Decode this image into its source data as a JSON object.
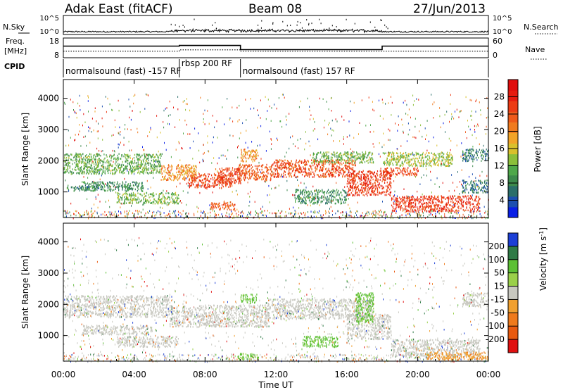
{
  "header": {
    "title": "Adak East (fitACF)",
    "beam": "Beam 08",
    "date": "27/Jun/2013"
  },
  "labels": {
    "nsky": "N.Sky",
    "nsearch": "N.Search",
    "freq_line1": "Freq.",
    "freq_line2": "[MHz]",
    "nave": "Nave",
    "cpid": "CPID",
    "noise_tick_hi": "10^5",
    "noise_tick_lo": "10^0",
    "freq_tick_hi": "18",
    "freq_tick_lo": "8",
    "nave_tick_hi": "60",
    "nave_tick_lo": "0",
    "xlabel": "Time UT",
    "power_ylabel": "Slant Range [km]",
    "velocity_ylabel": "Slant Range [km]",
    "power_unit": "Power [dB]",
    "velocity_unit_main": "Velocity [m s",
    "velocity_unit_sup": "-1",
    "velocity_unit_end": "]"
  },
  "cpid_segments": [
    {
      "text": "normalsound (fast) -157 RF",
      "start_h": 0,
      "end_h": 6.55
    },
    {
      "text": "rbsp 200 RF",
      "start_h": 6.55,
      "end_h": 10.0
    },
    {
      "text": "normalsound (fast) 157 RF",
      "start_h": 10.0,
      "end_h": 24.0
    }
  ],
  "chart_data": [
    {
      "type": "line",
      "name": "Noise / Frequency / Nave summary",
      "x_range_h": [
        0,
        24
      ],
      "frequency_mhz": [
        {
          "from_h": 0,
          "to_h": 6.55,
          "value": 13.9
        },
        {
          "from_h": 6.55,
          "to_h": 10.0,
          "value": 14.2
        },
        {
          "from_h": 10.0,
          "to_h": 18.0,
          "value": 12.1
        },
        {
          "from_h": 18.0,
          "to_h": 24.0,
          "value": 13.9
        }
      ],
      "nave": [
        {
          "from_h": 0,
          "to_h": 6.55,
          "value": 20
        },
        {
          "from_h": 6.55,
          "to_h": 10.0,
          "value": 24
        },
        {
          "from_h": 10.0,
          "to_h": 24.0,
          "value": 20
        }
      ],
      "freq_ylim": [
        8,
        18
      ],
      "nave_ylim": [
        0,
        60
      ],
      "noise_ylim_log10": [
        0,
        5
      ]
    },
    {
      "type": "heatmap",
      "name": "Power",
      "xlabel": "Time UT",
      "ylabel": "Slant Range [km]",
      "x_ticks": [
        "00:00",
        "04:00",
        "08:00",
        "12:00",
        "16:00",
        "20:00",
        "00:00"
      ],
      "x_range_h": [
        0,
        24
      ],
      "y_ticks": [
        1000,
        2000,
        3000,
        4000
      ],
      "y_range_km": [
        180,
        4600
      ],
      "colorbar": {
        "label": "Power [dB]",
        "ticks": [
          4,
          8,
          12,
          16,
          20,
          24,
          28
        ],
        "range": [
          0,
          32
        ],
        "colors": [
          "#0a1fe6",
          "#1c4fb0",
          "#2a6e6a",
          "#3d8a4c",
          "#4fa84a",
          "#8cbf3a",
          "#d9c02c",
          "#f2a428",
          "#f07b1f",
          "#ee5a1a",
          "#ec3b14",
          "#e61c10",
          "#e00d0d"
        ]
      },
      "features": [
        {
          "from_h": 0.0,
          "to_h": 5.5,
          "range_km": [
            1600,
            2250
          ],
          "power_db": 11
        },
        {
          "from_h": 0.2,
          "to_h": 2.0,
          "range_km": [
            1050,
            1250
          ],
          "power_db": 6
        },
        {
          "from_h": 1.0,
          "to_h": 4.5,
          "range_km": [
            1050,
            1350
          ],
          "power_db": 8
        },
        {
          "from_h": 3.0,
          "to_h": 6.5,
          "range_km": [
            650,
            1000
          ],
          "power_db": 12
        },
        {
          "from_h": 5.5,
          "to_h": 7.5,
          "range_km": [
            1400,
            1900
          ],
          "power_db": 20
        },
        {
          "from_h": 7.0,
          "to_h": 9.5,
          "range_km": [
            1150,
            1600
          ],
          "power_db": 26
        },
        {
          "from_h": 8.5,
          "to_h": 10.0,
          "range_km": [
            1300,
            1800
          ],
          "power_db": 26
        },
        {
          "from_h": 9.8,
          "to_h": 11.8,
          "range_km": [
            1400,
            1900
          ],
          "power_db": 24
        },
        {
          "from_h": 10.0,
          "to_h": 11.0,
          "range_km": [
            2000,
            2400
          ],
          "power_db": 20
        },
        {
          "from_h": 11.8,
          "to_h": 16.5,
          "range_km": [
            1500,
            2050
          ],
          "power_db": 25
        },
        {
          "from_h": 14.0,
          "to_h": 17.5,
          "range_km": [
            1950,
            2300
          ],
          "power_db": 12
        },
        {
          "from_h": 13.0,
          "to_h": 16.0,
          "range_km": [
            650,
            1100
          ],
          "power_db": 8
        },
        {
          "from_h": 16.0,
          "to_h": 18.5,
          "range_km": [
            900,
            1700
          ],
          "power_db": 27
        },
        {
          "from_h": 18.0,
          "to_h": 20.0,
          "range_km": [
            1550,
            1800
          ],
          "power_db": 26
        },
        {
          "from_h": 18.0,
          "to_h": 22.0,
          "range_km": [
            1850,
            2300
          ],
          "power_db": 14
        },
        {
          "from_h": 18.5,
          "to_h": 23.5,
          "range_km": [
            400,
            900
          ],
          "power_db": 27
        },
        {
          "from_h": 22.5,
          "to_h": 24.0,
          "range_km": [
            1000,
            1400
          ],
          "power_db": 6
        },
        {
          "from_h": 22.5,
          "to_h": 24.0,
          "range_km": [
            2000,
            2400
          ],
          "power_db": 6
        },
        {
          "from_h": 8.3,
          "to_h": 9.7,
          "range_km": [
            450,
            700
          ],
          "power_db": 24
        }
      ]
    },
    {
      "type": "heatmap",
      "name": "Velocity",
      "xlabel": "Time UT",
      "ylabel": "Slant Range [km]",
      "x_ticks": [
        "00:00",
        "04:00",
        "08:00",
        "12:00",
        "16:00",
        "20:00",
        "00:00"
      ],
      "x_range_h": [
        0,
        24
      ],
      "y_ticks": [
        1000,
        2000,
        3000,
        4000
      ],
      "y_range_km": [
        180,
        4600
      ],
      "colorbar": {
        "label": "Velocity [m s-1]",
        "ticks": [
          200,
          100,
          50,
          15,
          -15,
          -50,
          -100,
          -200
        ],
        "range": [
          -250,
          250
        ],
        "colors": [
          "#1c3fd6",
          "#2f7a46",
          "#5cc035",
          "#9ad04a",
          "#c8c8c0",
          "#f0a030",
          "#ef7a1c",
          "#e85a10",
          "#e01010"
        ]
      },
      "features": [
        {
          "from_h": 0.0,
          "to_h": 6.0,
          "range_km": [
            1600,
            2300
          ],
          "velocity_ms": 0
        },
        {
          "from_h": 1.0,
          "to_h": 5.0,
          "range_km": [
            1050,
            1350
          ],
          "velocity_ms": 0
        },
        {
          "from_h": 3.0,
          "to_h": 6.5,
          "range_km": [
            650,
            1000
          ],
          "velocity_ms": 0
        },
        {
          "from_h": 6.0,
          "to_h": 11.5,
          "range_km": [
            1300,
            2000
          ],
          "velocity_ms": 0
        },
        {
          "from_h": 11.5,
          "to_h": 17.5,
          "range_km": [
            1550,
            2200
          ],
          "velocity_ms": 0
        },
        {
          "from_h": 16.0,
          "to_h": 18.5,
          "range_km": [
            900,
            1700
          ],
          "velocity_ms": 0
        },
        {
          "from_h": 18.5,
          "to_h": 23.5,
          "range_km": [
            350,
            900
          ],
          "velocity_ms": 0
        },
        {
          "from_h": 10.0,
          "to_h": 10.9,
          "range_km": [
            2050,
            2350
          ],
          "velocity_ms": 70
        },
        {
          "from_h": 9.8,
          "to_h": 11.0,
          "range_km": [
            250,
            450
          ],
          "velocity_ms": 70
        },
        {
          "from_h": 13.5,
          "to_h": 15.5,
          "range_km": [
            650,
            1000
          ],
          "velocity_ms": 40
        },
        {
          "from_h": 16.5,
          "to_h": 17.5,
          "range_km": [
            1400,
            2400
          ],
          "velocity_ms": 60
        },
        {
          "from_h": 20.5,
          "to_h": 24.0,
          "range_km": [
            250,
            500
          ],
          "velocity_ms": -60
        },
        {
          "from_h": 22.5,
          "to_h": 24.0,
          "range_km": [
            1950,
            2400
          ],
          "velocity_ms": 0
        }
      ]
    }
  ]
}
